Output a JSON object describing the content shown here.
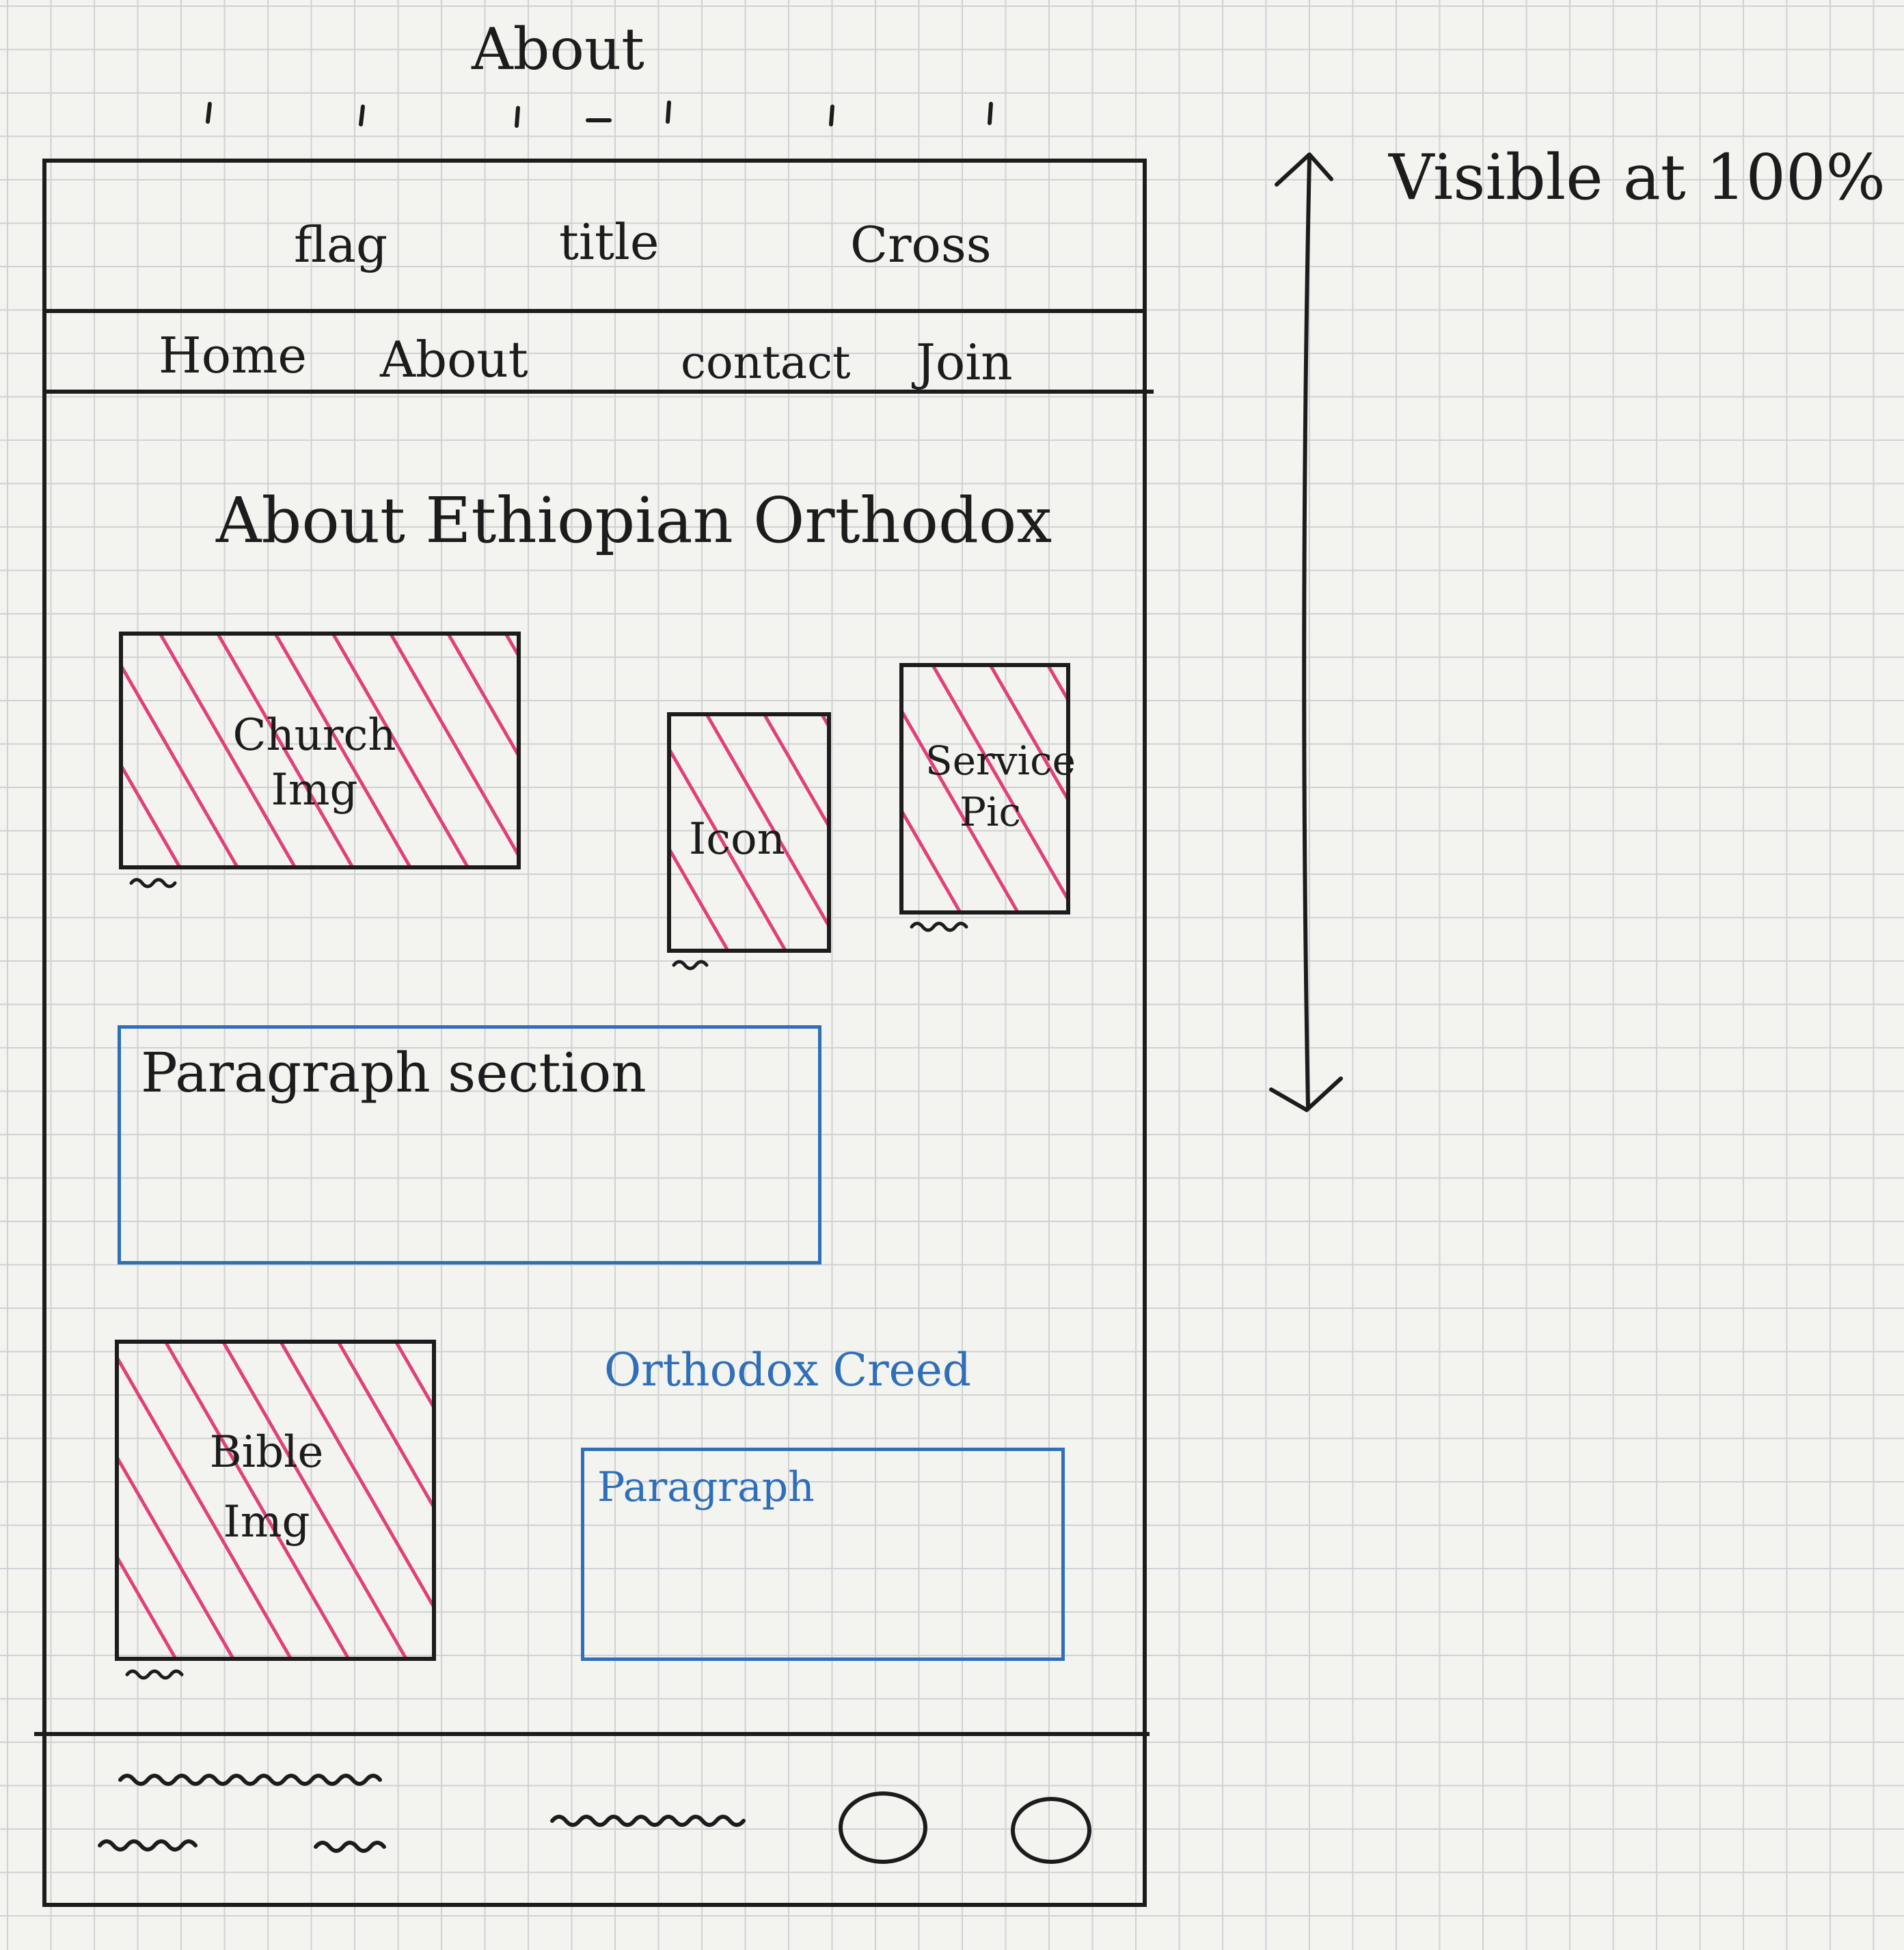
{
  "page_label": "About",
  "header": {
    "left": "flag",
    "center": "title",
    "right": "Cross"
  },
  "nav": {
    "items": [
      "Home",
      "About",
      "contact",
      "Join"
    ]
  },
  "main": {
    "heading": "About Ethiopian Orthodox",
    "images": {
      "church": "Church Img",
      "icon": "Icon",
      "service": "Service Pic",
      "bible": "Bible Img"
    },
    "paragraph_section": "Paragraph section",
    "creed_heading": "Orthodox Creed",
    "creed_paragraph": "Paragraph"
  },
  "annotation": {
    "visibility": "Visible at 100%"
  },
  "colors": {
    "ink": "#1c1c1c",
    "blue_ink": "#2f6fb8",
    "hatch": "#e0417a",
    "grid": "#cfd2d4",
    "paper": "#f3f3f0"
  }
}
